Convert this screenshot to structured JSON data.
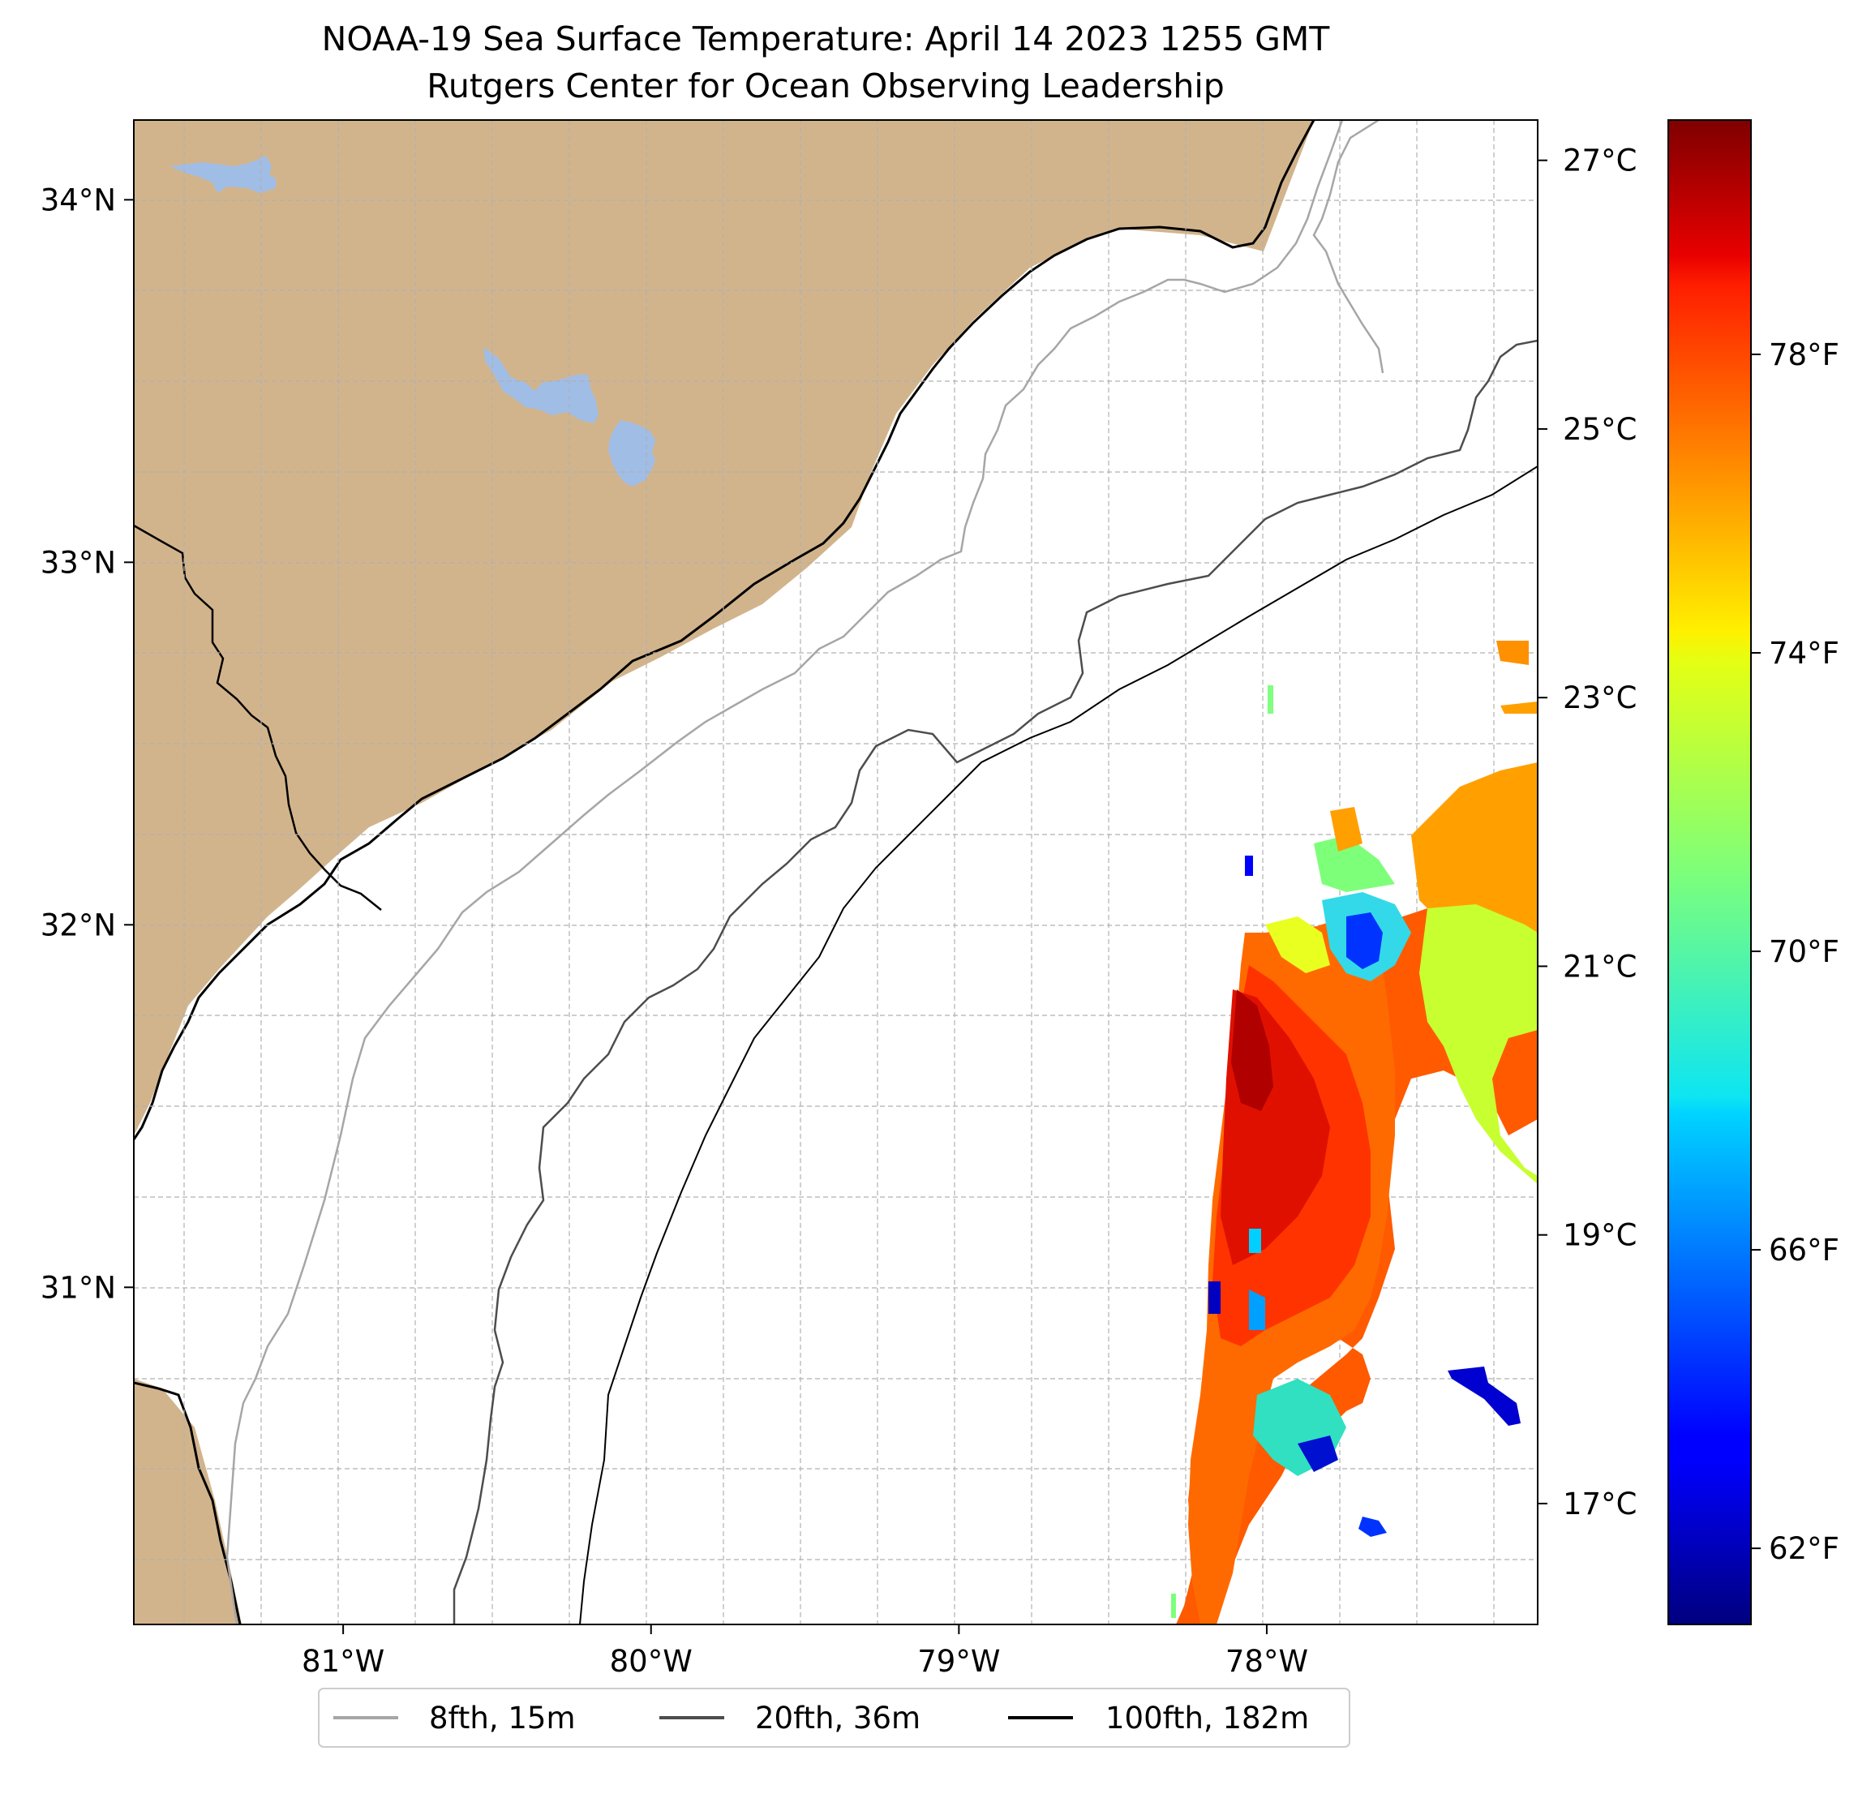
{
  "title": {
    "line1": "NOAA-19 Sea Surface Temperature: April 14 2023 1255 GMT",
    "line2": "Rutgers Center for Ocean Observing Leadership"
  },
  "map": {
    "lon_range": [
      -81.68,
      -77.12
    ],
    "lat_range": [
      30.07,
      34.22
    ],
    "lat_ticks": [
      {
        "value": 34,
        "label": "34°N"
      },
      {
        "value": 33,
        "label": "33°N"
      },
      {
        "value": 32,
        "label": "32°N"
      },
      {
        "value": 31,
        "label": "31°N"
      }
    ],
    "lon_ticks": [
      {
        "value": -81,
        "label": "81°W"
      },
      {
        "value": -80,
        "label": "80°W"
      },
      {
        "value": -79,
        "label": "79°W"
      },
      {
        "value": -78,
        "label": "78°W"
      }
    ],
    "minor_grid_step_deg": 0.25,
    "colors": {
      "land": "#d2b48c",
      "lakes": "#a0bde6",
      "ocean": "#ffffff",
      "coastline": "#000000",
      "grid": "#b0b0b0"
    }
  },
  "legend": {
    "items": [
      {
        "label": "8fth, 15m",
        "color": "#a6a6a6"
      },
      {
        "label": "20fth, 36m",
        "color": "#4d4d4d"
      },
      {
        "label": "100fth, 182m",
        "color": "#000000"
      }
    ]
  },
  "colorbar": {
    "colormap": "jet",
    "range_c": [
      16.1,
      27.3
    ],
    "celsius_ticks": [
      {
        "value": 27,
        "label": "27°C"
      },
      {
        "value": 25,
        "label": "25°C"
      },
      {
        "value": 23,
        "label": "23°C"
      },
      {
        "value": 21,
        "label": "21°C"
      },
      {
        "value": 19,
        "label": "19°C"
      },
      {
        "value": 17,
        "label": "17°C"
      }
    ],
    "fahrenheit_ticks": [
      {
        "value": 78,
        "label": "78°F"
      },
      {
        "value": 74,
        "label": "74°F"
      },
      {
        "value": 70,
        "label": "70°F"
      },
      {
        "value": 66,
        "label": "66°F"
      },
      {
        "value": 62,
        "label": "62°F"
      }
    ]
  }
}
